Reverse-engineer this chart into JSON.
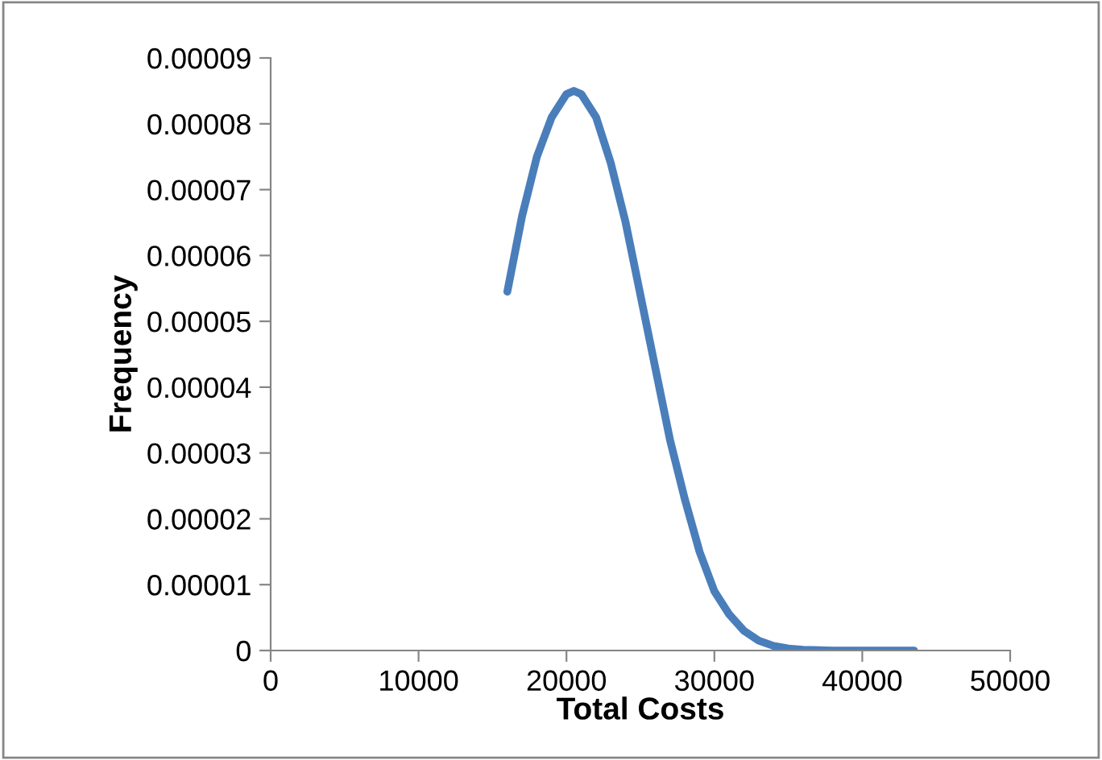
{
  "chart_data": {
    "type": "line",
    "xlabel": "Total Costs",
    "ylabel": "Frequency",
    "series": [
      {
        "color": "#4a7ebb",
        "x": [
          16000,
          17000,
          18000,
          19000,
          20000,
          20500,
          21000,
          22000,
          23000,
          24000,
          25000,
          26000,
          27000,
          28000,
          29000,
          30000,
          31000,
          32000,
          33000,
          34000,
          35000,
          36000,
          38000,
          40000,
          43500
        ],
        "values": [
          5.45e-05,
          6.6e-05,
          7.5e-05,
          8.1e-05,
          8.45e-05,
          8.5e-05,
          8.45e-05,
          8.1e-05,
          7.4e-05,
          6.5e-05,
          5.4e-05,
          4.3e-05,
          3.2e-05,
          2.3e-05,
          1.5e-05,
          9e-06,
          5.5e-06,
          3e-06,
          1.5e-06,
          7e-07,
          3e-07,
          1e-07,
          0,
          0,
          0
        ]
      }
    ],
    "xlim": [
      0,
      50000
    ],
    "xticks": [
      0,
      10000,
      20000,
      30000,
      40000,
      50000
    ],
    "ylim": [
      0,
      9e-05
    ],
    "yticks": [
      0,
      {
        "value": 1e-05,
        "label": "0.00001"
      },
      {
        "value": 2e-05,
        "label": "0.00002"
      },
      {
        "value": 3e-05,
        "label": "0.00003"
      },
      {
        "value": 4e-05,
        "label": "0.00004"
      },
      {
        "value": 5e-05,
        "label": "0.00005"
      },
      {
        "value": 6e-05,
        "label": "0.00006"
      },
      {
        "value": 7e-05,
        "label": "0.00007"
      },
      {
        "value": 8e-05,
        "label": "0.00008"
      },
      {
        "value": 9e-05,
        "label": "0.00009"
      }
    ],
    "grid": false,
    "legend": false,
    "marker": "none",
    "line_style": "solid"
  }
}
